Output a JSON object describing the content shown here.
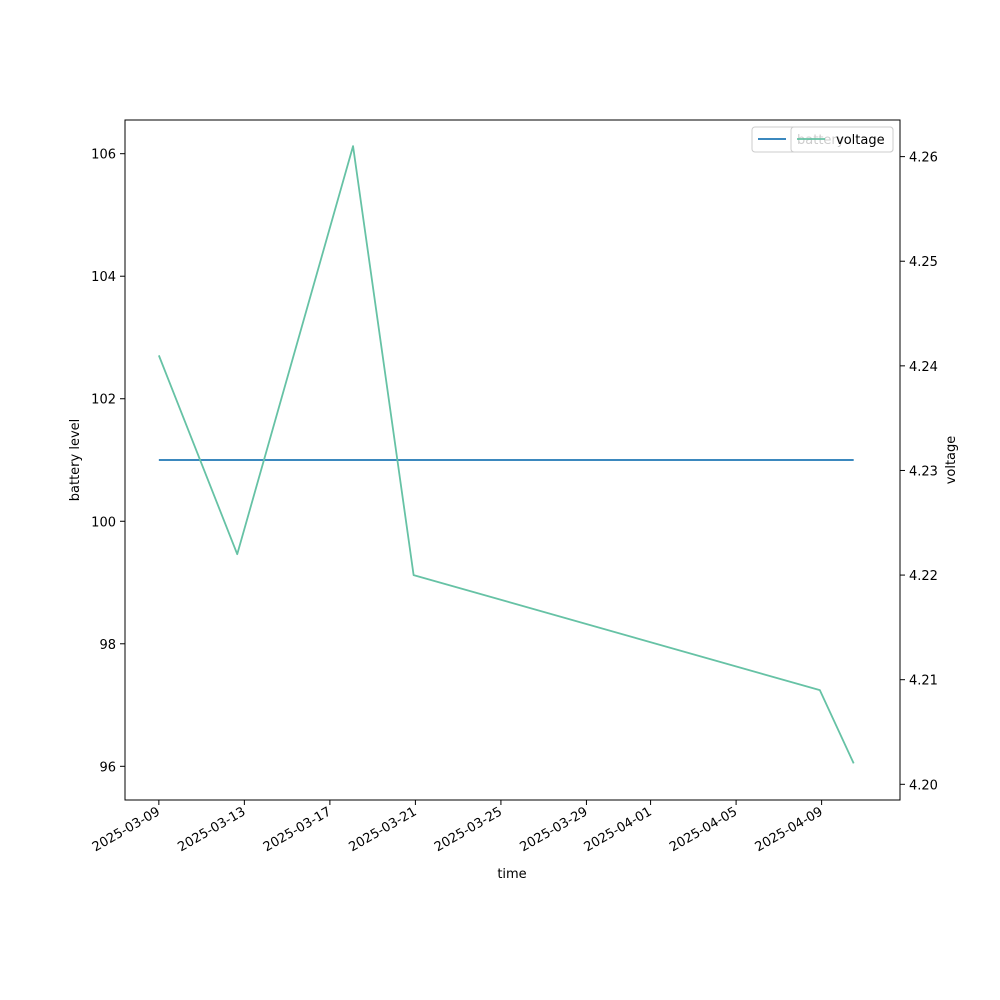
{
  "chart_data": {
    "type": "line",
    "title": "",
    "xlabel": "time",
    "ylabel_left": "battery level",
    "ylabel_right": "voltage",
    "x_tick_labels": [
      "2025-03-09",
      "2025-03-13",
      "2025-03-17",
      "2025-03-21",
      "2025-03-25",
      "2025-03-29",
      "2025-04-01",
      "2025-04-05",
      "2025-04-09"
    ],
    "y_left_ticks": [
      "96",
      "98",
      "100",
      "102",
      "104",
      "106"
    ],
    "y_right_ticks": [
      "4.20",
      "4.21",
      "4.22",
      "4.23",
      "4.24",
      "4.25",
      "4.26"
    ],
    "x_range": [
      "2025-03-07T10:00",
      "2025-04-12T16:00"
    ],
    "y_left_range": [
      95.45,
      106.55
    ],
    "y_right_range": [
      4.1985,
      4.2635
    ],
    "grid": false,
    "series": [
      {
        "name": "battery",
        "axis": "left",
        "color": "#1f77b4",
        "points": [
          {
            "x": "2025-03-09T00:00",
            "y": 101.0
          },
          {
            "x": "2025-04-10T12:00",
            "y": 101.0
          }
        ]
      },
      {
        "name": "voltage",
        "axis": "right",
        "color": "#66c2a5",
        "points": [
          {
            "x": "2025-03-09T00:00",
            "y": 4.241
          },
          {
            "x": "2025-03-12T16:00",
            "y": 4.222
          },
          {
            "x": "2025-03-18T02:00",
            "y": 4.261
          },
          {
            "x": "2025-03-20T22:00",
            "y": 4.22
          },
          {
            "x": "2025-04-08T22:00",
            "y": 4.209
          },
          {
            "x": "2025-04-10T12:00",
            "y": 4.202
          }
        ]
      }
    ],
    "legends": [
      {
        "placement": "top-right",
        "entries": [
          "battery"
        ]
      },
      {
        "placement": "top-right",
        "entries": [
          "voltage"
        ]
      }
    ]
  }
}
